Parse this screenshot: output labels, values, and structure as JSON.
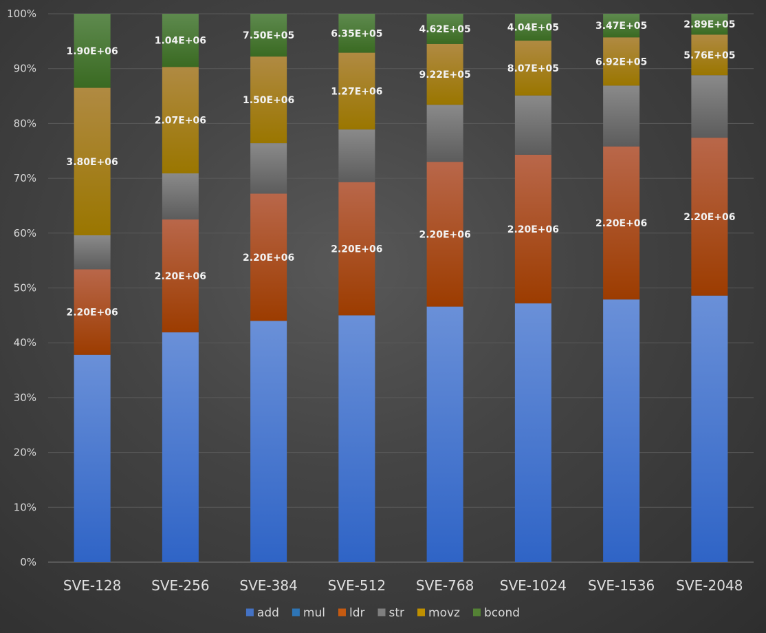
{
  "chart_data": {
    "type": "bar",
    "stacked": "percent",
    "title": "",
    "xlabel": "",
    "ylabel": "",
    "ylim": [
      0,
      100
    ],
    "yticks": [
      "0%",
      "10%",
      "20%",
      "30%",
      "40%",
      "50%",
      "60%",
      "70%",
      "80%",
      "90%",
      "100%"
    ],
    "grid": true,
    "legend_position": "bottom",
    "categories": [
      "SVE-128",
      "SVE-256",
      "SVE-384",
      "SVE-512",
      "SVE-768",
      "SVE-1024",
      "SVE-1536",
      "SVE-2048"
    ],
    "series": [
      {
        "name": "add",
        "color": "#4472c4",
        "values": [
          37.8,
          41.9,
          44.0,
          45.0,
          46.6,
          47.2,
          47.9,
          48.6
        ]
      },
      {
        "name": "mul",
        "color": "#2e75b6",
        "values": [
          0,
          0,
          0,
          0,
          0,
          0,
          0,
          0
        ]
      },
      {
        "name": "ldr",
        "color": "#c55a11",
        "values": [
          15.6,
          20.6,
          23.2,
          24.3,
          26.4,
          27.1,
          27.9,
          28.8
        ],
        "labels": [
          "2.20E+06",
          "2.20E+06",
          "2.20E+06",
          "2.20E+06",
          "2.20E+06",
          "2.20E+06",
          "2.20E+06",
          "2.20E+06"
        ]
      },
      {
        "name": "str",
        "color": "#7f7f7f",
        "values": [
          6.2,
          8.4,
          9.2,
          9.6,
          10.4,
          10.8,
          11.1,
          11.4
        ]
      },
      {
        "name": "movz",
        "color": "#bf9000",
        "values": [
          26.9,
          19.4,
          15.8,
          14.0,
          11.1,
          10.0,
          8.8,
          7.4
        ],
        "labels": [
          "3.80E+06",
          "2.07E+06",
          "1.50E+06",
          "1.27E+06",
          "9.22E+05",
          "8.07E+05",
          "6.92E+05",
          "5.76E+05"
        ]
      },
      {
        "name": "bcond",
        "color": "#548235",
        "values": [
          13.5,
          9.7,
          7.8,
          7.1,
          5.5,
          4.9,
          4.3,
          3.8
        ],
        "labels": [
          "1.90E+06",
          "1.04E+06",
          "7.50E+05",
          "6.35E+05",
          "4.62E+05",
          "4.04E+05",
          "3.47E+05",
          "2.89E+05"
        ]
      }
    ]
  }
}
